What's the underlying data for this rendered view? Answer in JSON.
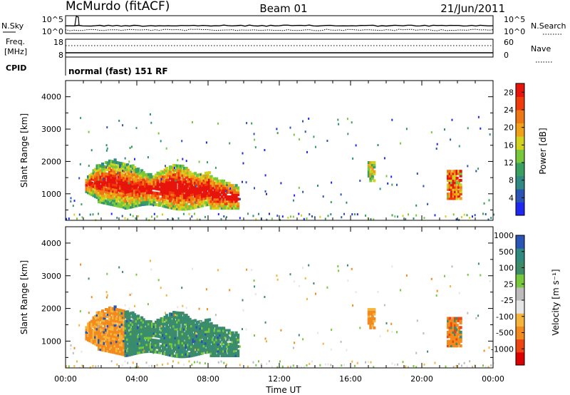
{
  "header": {
    "station": "McMurdo (fitACF)",
    "beam": "Beam 01",
    "date": "21/Jun/2011"
  },
  "noise_panel": {
    "left_label": "N.Sky",
    "right_label": "N.Search",
    "left_ticks": [
      "10^5",
      "10^0"
    ],
    "right_ticks": [
      "10^5",
      "10^0"
    ]
  },
  "freq_panel": {
    "left_label_1": "Freq.",
    "left_label_2": "[MHz]",
    "left_ticks": [
      "18",
      "8"
    ],
    "right_label": "Nave",
    "right_ticks": [
      "60",
      "0"
    ],
    "cpid_label": "CPID",
    "cpid_text": "normal (fast) 151 RF"
  },
  "colors": {
    "power_scale": [
      "#1e28f0",
      "#2a55b4",
      "#2e8a82",
      "#3aa060",
      "#78c83c",
      "#d2d21e",
      "#f0a019",
      "#f07814",
      "#f03c0a",
      "#e6140a"
    ],
    "velocity_scale": [
      "#dc0000",
      "#ee4411",
      "#f28a1e",
      "#f5b43c",
      "#e6e6e6",
      "#bcbcbc",
      "#78c83c",
      "#3c8c6a",
      "#2f8a80",
      "#2a55b4"
    ]
  },
  "chart_data": [
    {
      "type": "heatmap",
      "title": "Power",
      "ylabel": "Slant Range [km]",
      "yticks": [
        "1000",
        "2000",
        "3000",
        "4000"
      ],
      "ylim": [
        180,
        4500
      ],
      "colorbar_label": "Power [dB]",
      "colorbar_ticks": [
        "4",
        "8",
        "12",
        "16",
        "20",
        "24",
        "28"
      ],
      "colorbar_range": [
        0,
        30
      ],
      "regions": [
        {
          "t": [
            1.1,
            9.6
          ],
          "r": [
            700,
            2000
          ],
          "values": "12-30 dB (main echo, strongest 08:00-09:30)"
        },
        {
          "t": [
            17.0,
            17.3
          ],
          "r": [
            1500,
            2000
          ],
          "values": "10-20 dB"
        },
        {
          "t": [
            21.5,
            22.2
          ],
          "r": [
            900,
            1700
          ],
          "values": "10-28 dB"
        },
        {
          "t": [
            0.0,
            24.0
          ],
          "r": [
            180,
            400
          ],
          "values": "4-20 dB (near-range scatter)"
        }
      ]
    },
    {
      "type": "heatmap",
      "title": "Velocity",
      "ylabel": "Slant Range [km]",
      "yticks": [
        "1000",
        "2000",
        "3000",
        "4000"
      ],
      "ylim": [
        180,
        4500
      ],
      "colorbar_label": "Velocity [m s⁻¹]",
      "colorbar_ticks": [
        "-1000",
        "-500",
        "-100",
        "-25",
        "25",
        "100",
        "500",
        "1000"
      ],
      "colorbar_range": [
        -1000,
        1000
      ],
      "regions": [
        {
          "t": [
            1.1,
            3.3
          ],
          "r": [
            900,
            2000
          ],
          "values": "-100 to -500 m/s"
        },
        {
          "t": [
            3.3,
            9.6
          ],
          "r": [
            600,
            1900
          ],
          "values": "100 to 500 m/s"
        },
        {
          "t": [
            17.0,
            17.3
          ],
          "r": [
            1500,
            2000
          ],
          "values": "-100 to -500 m/s"
        },
        {
          "t": [
            21.5,
            22.2
          ],
          "r": [
            900,
            1700
          ],
          "values": "-100 to -500 m/s"
        }
      ]
    }
  ],
  "xaxis": {
    "ticks": [
      "00:00",
      "04:00",
      "08:00",
      "12:00",
      "16:00",
      "20:00",
      "00:00"
    ],
    "label": "Time UT"
  }
}
